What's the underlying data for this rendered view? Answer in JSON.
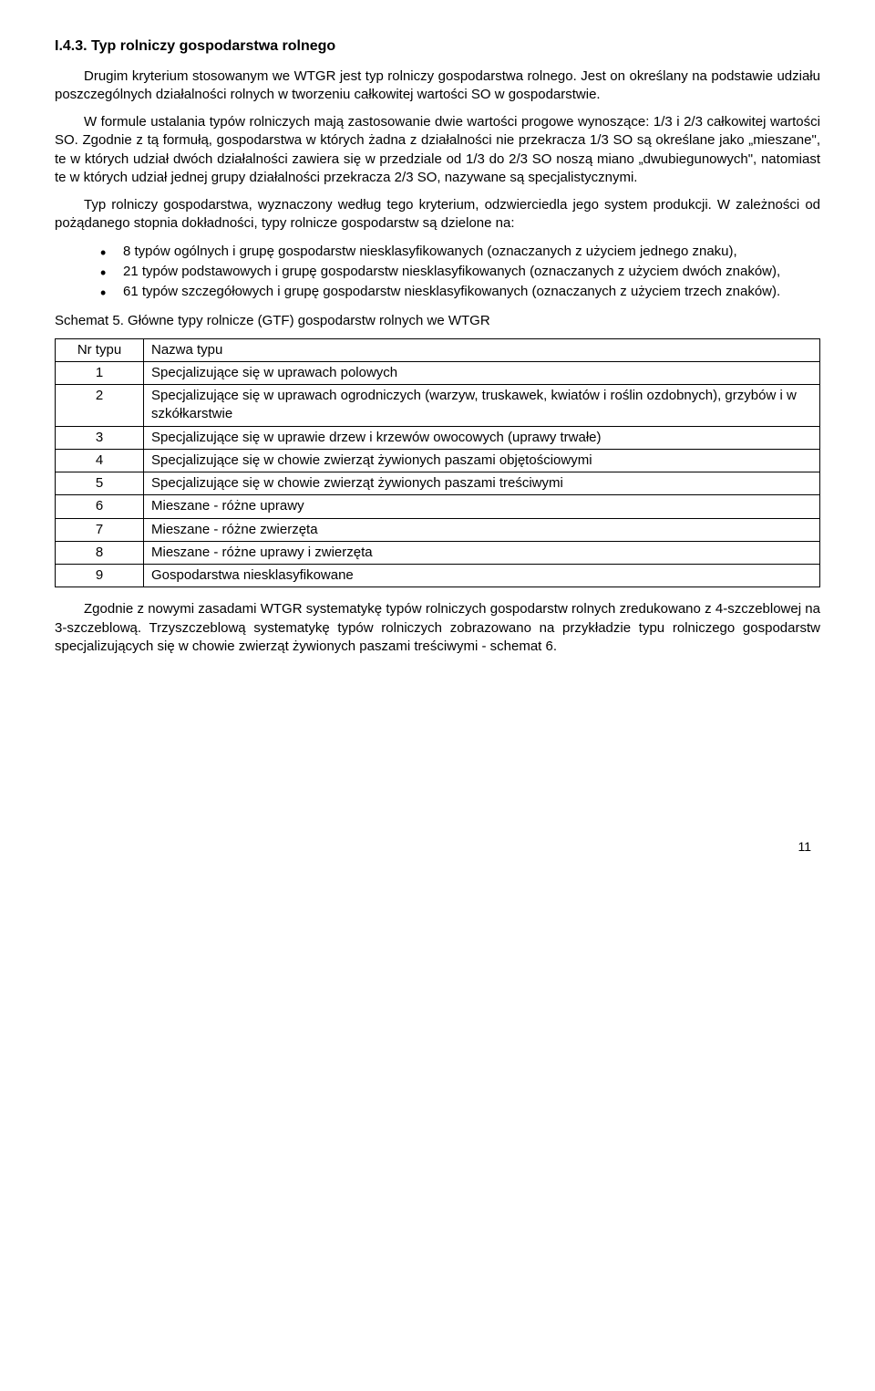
{
  "heading": "I.4.3. Typ rolniczy gospodarstwa rolnego",
  "p1": "Drugim kryterium stosowanym we WTGR jest typ rolniczy gospodarstwa rolnego. Jest on określany na podstawie udziału poszczególnych działalności rolnych w tworzeniu całkowitej wartości SO w gospodarstwie.",
  "p2": "W formule ustalania typów rolniczych mają zastosowanie dwie wartości progowe wynoszące: 1/3 i 2/3 całkowitej wartości SO. Zgodnie z tą formułą, gospodarstwa w których żadna z działalności nie przekracza 1/3 SO są określane jako „mieszane\", te w których udział dwóch działalności zawiera się w przedziale od 1/3 do 2/3 SO noszą miano „dwubiegunowych\", natomiast te w których udział jednej grupy działalności przekracza 2/3 SO, nazywane są specjalistycznymi.",
  "p3": "Typ rolniczy gospodarstwa, wyznaczony według tego kryterium, odzwierciedla jego system produkcji. W zależności od pożądanego stopnia dokładności, typy rolnicze gospodarstw są dzielone na:",
  "bullets": [
    "8 typów ogólnych i grupę gospodarstw niesklasyfikowanych (oznaczanych z użyciem jednego znaku),",
    "21 typów podstawowych i grupę gospodarstw niesklasyfikowanych (oznaczanych z użyciem dwóch znaków),",
    "61 typów szczegółowych i grupę gospodarstw niesklasyfikowanych (oznaczanych z użyciem trzech znaków)."
  ],
  "schema_title": "Schemat 5. Główne typy rolnicze (GTF) gospodarstw rolnych we WTGR",
  "table": {
    "headers": [
      "Nr typu",
      "Nazwa typu"
    ],
    "rows": [
      [
        "1",
        "Specjalizujące się w uprawach polowych"
      ],
      [
        "2",
        "Specjalizujące się w uprawach ogrodniczych (warzyw, truskawek, kwiatów i roślin ozdobnych), grzybów i w szkółkarstwie"
      ],
      [
        "3",
        "Specjalizujące się w uprawie drzew i krzewów owocowych (uprawy trwałe)"
      ],
      [
        "4",
        "Specjalizujące się w chowie zwierząt żywionych paszami objętościowymi"
      ],
      [
        "5",
        "Specjalizujące się w chowie zwierząt żywionych paszami treściwymi"
      ],
      [
        "6",
        "Mieszane - różne uprawy"
      ],
      [
        "7",
        "Mieszane - różne zwierzęta"
      ],
      [
        "8",
        "Mieszane - różne uprawy i zwierzęta"
      ],
      [
        "9",
        "Gospodarstwa niesklasyfikowane"
      ]
    ]
  },
  "p_final": "Zgodnie z nowymi zasadami WTGR systematykę typów rolniczych gospodarstw rolnych zredukowano z 4-szczeblowej na 3-szczeblową. Trzyszczeblową systematykę typów rolniczych zobrazowano na przykładzie typu rolniczego gospodarstw specjalizujących się w chowie zwierząt żywionych paszami treściwymi - schemat 6.",
  "page_num": "11"
}
